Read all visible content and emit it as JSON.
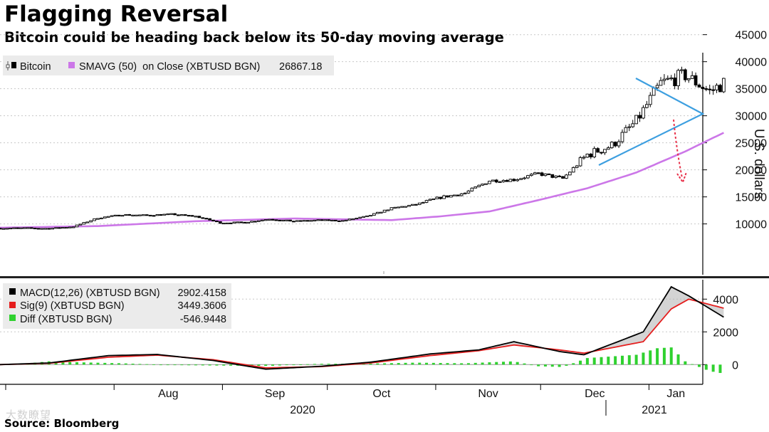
{
  "title": "Flagging Reversal",
  "subtitle": "Bitcoin could be heading back below its 50-day moving average",
  "source": "Source: Bloomberg",
  "watermark": "大数瞭望",
  "colors": {
    "candle": "#000000",
    "sma": "#cc77e8",
    "triangle": "#3d9fe0",
    "arrow": "#e8314a",
    "macd": "#000000",
    "signal": "#e51e1e",
    "diff": "#2fd12f",
    "legend_bg": "#ebebeb",
    "grid": "#c8c8c8"
  },
  "chart_data": [
    {
      "type": "candlestick",
      "ylabel": "U.S. dollars",
      "ylim": [
        5000,
        45000
      ],
      "yticks": [
        "10000",
        "15000",
        "20000",
        "25000",
        "30000",
        "35000",
        "40000",
        "45000"
      ],
      "legend": [
        {
          "name": "Bitcoin",
          "value": "",
          "icon": "candle-icon"
        },
        {
          "name": "SMAVG (50)  on Close (XBTUSD BGN)",
          "value": "26867.18",
          "icon": "swatch"
        }
      ],
      "x_months": [
        "Aug",
        "Sep",
        "Oct",
        "Nov",
        "Dec",
        "Jan"
      ],
      "x_years": [
        "2020",
        "2021"
      ],
      "start_date": "2020-07-01",
      "bitcoin_close_weekly": [
        {
          "date": "2020-07-01",
          "close": 9200
        },
        {
          "date": "2020-07-08",
          "close": 9250
        },
        {
          "date": "2020-07-15",
          "close": 9150
        },
        {
          "date": "2020-07-22",
          "close": 9500
        },
        {
          "date": "2020-07-29",
          "close": 11100
        },
        {
          "date": "2020-08-05",
          "close": 11700
        },
        {
          "date": "2020-08-12",
          "close": 11600
        },
        {
          "date": "2020-08-19",
          "close": 11800
        },
        {
          "date": "2020-08-26",
          "close": 11400
        },
        {
          "date": "2020-09-02",
          "close": 10200
        },
        {
          "date": "2020-09-09",
          "close": 10300
        },
        {
          "date": "2020-09-16",
          "close": 10900
        },
        {
          "date": "2020-09-23",
          "close": 10500
        },
        {
          "date": "2020-09-30",
          "close": 10700
        },
        {
          "date": "2020-10-07",
          "close": 10600
        },
        {
          "date": "2020-10-14",
          "close": 11400
        },
        {
          "date": "2020-10-21",
          "close": 12900
        },
        {
          "date": "2020-10-28",
          "close": 13600
        },
        {
          "date": "2020-11-04",
          "close": 14900
        },
        {
          "date": "2020-11-11",
          "close": 15700
        },
        {
          "date": "2020-11-18",
          "close": 18000
        },
        {
          "date": "2020-11-25",
          "close": 18200
        },
        {
          "date": "2020-12-02",
          "close": 19300
        },
        {
          "date": "2020-12-09",
          "close": 18400
        },
        {
          "date": "2020-12-16",
          "close": 22800
        },
        {
          "date": "2020-12-23",
          "close": 24500
        },
        {
          "date": "2020-12-30",
          "close": 29000
        },
        {
          "date": "2021-01-06",
          "close": 36000
        },
        {
          "date": "2021-01-13",
          "close": 37500
        },
        {
          "date": "2021-01-20",
          "close": 34500
        },
        {
          "date": "2021-01-24",
          "close": 36000
        }
      ],
      "sma50_weekly": [
        {
          "date": "2020-07-01",
          "value": 9300
        },
        {
          "date": "2020-07-29",
          "value": 9600
        },
        {
          "date": "2020-08-26",
          "value": 10500
        },
        {
          "date": "2020-09-23",
          "value": 11000
        },
        {
          "date": "2020-10-21",
          "value": 10700
        },
        {
          "date": "2020-11-04",
          "value": 11400
        },
        {
          "date": "2020-11-18",
          "value": 12300
        },
        {
          "date": "2020-12-02",
          "value": 14400
        },
        {
          "date": "2020-12-16",
          "value": 16600
        },
        {
          "date": "2020-12-30",
          "value": 19500
        },
        {
          "date": "2021-01-13",
          "value": 23400
        },
        {
          "date": "2021-01-24",
          "value": 26867
        }
      ]
    },
    {
      "type": "line",
      "ylim": [
        -1300,
        5300
      ],
      "yticks": [
        "0",
        "2000",
        "4000"
      ],
      "legend": [
        {
          "name": "MACD(12,26) (XBTUSD BGN)",
          "value": "2902.4158"
        },
        {
          "name": "Sig(9) (XBTUSD BGN)",
          "value": "3449.3606"
        },
        {
          "name": "Diff (XBTUSD BGN)",
          "value": "-546.9448"
        }
      ],
      "macd_weekly": [
        {
          "date": "2020-07-01",
          "value": 0
        },
        {
          "date": "2020-07-15",
          "value": 100
        },
        {
          "date": "2020-08-01",
          "value": 550
        },
        {
          "date": "2020-08-15",
          "value": 620
        },
        {
          "date": "2020-08-31",
          "value": 250
        },
        {
          "date": "2020-09-15",
          "value": -280
        },
        {
          "date": "2020-10-01",
          "value": -100
        },
        {
          "date": "2020-10-15",
          "value": 150
        },
        {
          "date": "2020-11-01",
          "value": 650
        },
        {
          "date": "2020-11-15",
          "value": 900
        },
        {
          "date": "2020-11-25",
          "value": 1400
        },
        {
          "date": "2020-12-08",
          "value": 800
        },
        {
          "date": "2020-12-15",
          "value": 600
        },
        {
          "date": "2021-01-01",
          "value": 2000
        },
        {
          "date": "2021-01-09",
          "value": 4750
        },
        {
          "date": "2021-01-14",
          "value": 4200
        },
        {
          "date": "2021-01-24",
          "value": 2902
        }
      ],
      "signal_weekly": [
        {
          "date": "2020-07-01",
          "value": 0
        },
        {
          "date": "2020-07-15",
          "value": 80
        },
        {
          "date": "2020-08-01",
          "value": 450
        },
        {
          "date": "2020-08-15",
          "value": 580
        },
        {
          "date": "2020-08-31",
          "value": 300
        },
        {
          "date": "2020-09-15",
          "value": -200
        },
        {
          "date": "2020-10-01",
          "value": -120
        },
        {
          "date": "2020-10-15",
          "value": 100
        },
        {
          "date": "2020-11-01",
          "value": 550
        },
        {
          "date": "2020-11-15",
          "value": 850
        },
        {
          "date": "2020-11-25",
          "value": 1200
        },
        {
          "date": "2020-12-08",
          "value": 900
        },
        {
          "date": "2020-12-15",
          "value": 700
        },
        {
          "date": "2021-01-01",
          "value": 1400
        },
        {
          "date": "2021-01-09",
          "value": 3400
        },
        {
          "date": "2021-01-14",
          "value": 4000
        },
        {
          "date": "2021-01-24",
          "value": 3449
        }
      ],
      "diff_weekly": [
        {
          "date": "2020-07-08",
          "value": 50
        },
        {
          "date": "2020-07-15",
          "value": 200
        },
        {
          "date": "2020-07-22",
          "value": 150
        },
        {
          "date": "2020-08-05",
          "value": 80
        },
        {
          "date": "2020-08-19",
          "value": -30
        },
        {
          "date": "2020-09-02",
          "value": -60
        },
        {
          "date": "2020-09-16",
          "value": -80
        },
        {
          "date": "2020-09-30",
          "value": 50
        },
        {
          "date": "2020-10-14",
          "value": 60
        },
        {
          "date": "2020-10-28",
          "value": 120
        },
        {
          "date": "2020-11-11",
          "value": 80
        },
        {
          "date": "2020-11-25",
          "value": 200
        },
        {
          "date": "2020-12-02",
          "value": -100
        },
        {
          "date": "2020-12-09",
          "value": -150
        },
        {
          "date": "2020-12-16",
          "value": 400
        },
        {
          "date": "2020-12-23",
          "value": 500
        },
        {
          "date": "2020-12-30",
          "value": 600
        },
        {
          "date": "2021-01-05",
          "value": 1000
        },
        {
          "date": "2021-01-09",
          "value": 1050
        },
        {
          "date": "2021-01-13",
          "value": 200
        },
        {
          "date": "2021-01-20",
          "value": -400
        },
        {
          "date": "2021-01-24",
          "value": -547
        }
      ]
    }
  ]
}
